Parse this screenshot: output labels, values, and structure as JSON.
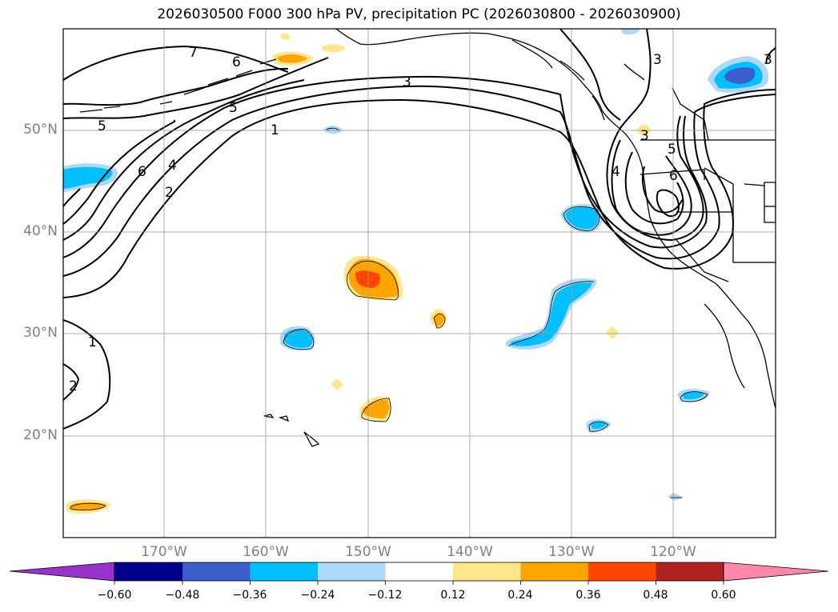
{
  "title": "2026030500 F000 300 hPa PV, precipitation PC (2026030800 - 2026030900)",
  "lat_labels": [
    "50°N",
    "40°N",
    "30°N",
    "20°N"
  ],
  "lon_labels": [
    "170°W",
    "160°W",
    "150°W",
    "140°W",
    "130°W",
    "120°W"
  ],
  "pv_contour_labels": [
    "7",
    "6",
    "5",
    "5",
    "6",
    "4",
    "2",
    "3",
    "1",
    "1",
    "2",
    "3",
    "3",
    "5",
    "4",
    "6",
    "3"
  ],
  "colorbar": {
    "ticks": [
      "−0.60",
      "−0.48",
      "−0.36",
      "−0.24",
      "−0.12",
      "0.12",
      "0.24",
      "0.36",
      "0.48",
      "0.60"
    ],
    "colors": [
      "#9932cc",
      "#00008b",
      "#3a5fcd",
      "#00bfff",
      "#add8f7",
      "#ffffff",
      "#ffe68a",
      "#ffa500",
      "#ff4500",
      "#b22222",
      "#ff88aa"
    ]
  },
  "chart_data": {
    "type": "contour-map",
    "title": "2026030500 F000 300 hPa PV, precipitation PC (2026030800 - 2026030900)",
    "projection": "PlateCarree",
    "extent_lon": [
      -180,
      -110
    ],
    "extent_lat": [
      10,
      60
    ],
    "gridlines_lon": [
      -170,
      -160,
      -150,
      -140,
      -130,
      -120
    ],
    "gridlines_lat": [
      20,
      30,
      40,
      50
    ],
    "pv_contour_levels": [
      1,
      2,
      3,
      4,
      5,
      6,
      7
    ],
    "precip_pc_levels": [
      -0.6,
      -0.48,
      -0.36,
      -0.24,
      -0.12,
      0.12,
      0.24,
      0.36,
      0.48,
      0.6
    ],
    "precip_features": [
      {
        "lon": -150,
        "lat": 35.5,
        "value_class": "0.36 to 0.48"
      },
      {
        "lon": -148.5,
        "lat": 22.5,
        "value_class": "0.24 to 0.36"
      },
      {
        "lon": -143,
        "lat": 31.5,
        "value_class": "0.24 to 0.36"
      },
      {
        "lon": -176,
        "lat": 13,
        "value_class": "0.24 to 0.36"
      },
      {
        "lon": -176,
        "lat": 45.5,
        "value_class": "-0.36 to -0.24"
      },
      {
        "lon": -157,
        "lat": 29.5,
        "value_class": "-0.36 to -0.24"
      },
      {
        "lon": -131,
        "lat": 31.5,
        "value_class": "-0.36 to -0.24"
      },
      {
        "lon": -128.5,
        "lat": 41.5,
        "value_class": "-0.48 to -0.36"
      },
      {
        "lon": -114,
        "lat": 55,
        "value_class": "-0.48 to -0.36"
      },
      {
        "lon": -118,
        "lat": 24,
        "value_class": "-0.36 to -0.24"
      },
      {
        "lon": -158,
        "lat": 57.5,
        "value_class": "0.24 to 0.36"
      }
    ]
  }
}
